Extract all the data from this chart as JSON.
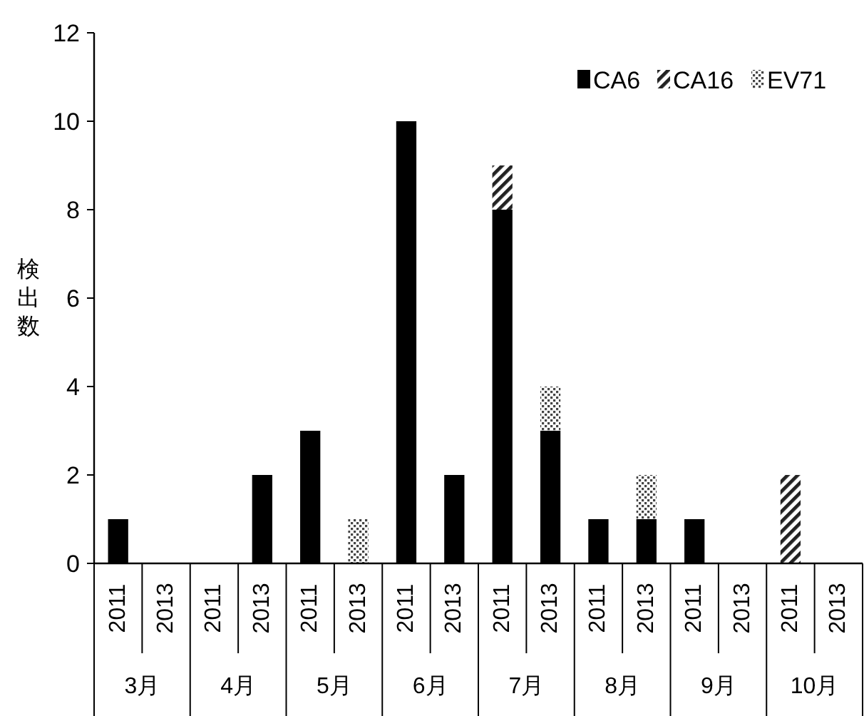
{
  "chart_data": {
    "type": "bar",
    "stacked": true,
    "ylabel": "検出数",
    "categories": [
      "2011",
      "2013",
      "2011",
      "2013",
      "2011",
      "2013",
      "2011",
      "2013",
      "2011",
      "2013",
      "2011",
      "2013",
      "2011",
      "2013",
      "2011",
      "2013"
    ],
    "annotations": [
      "3月",
      "4月",
      "5月",
      "6月",
      "7月",
      "8月",
      "9月",
      "10月"
    ],
    "series": [
      {
        "name": "CA6",
        "color": "#000000",
        "values": [
          1,
          0,
          0,
          2,
          3,
          0,
          10,
          2,
          8,
          3,
          1,
          1,
          1,
          0,
          0,
          0
        ]
      },
      {
        "name": "CA16",
        "color": "#222222",
        "values": [
          0,
          0,
          0,
          0,
          0,
          0,
          0,
          0,
          1,
          0,
          0,
          0,
          0,
          0,
          2,
          0
        ]
      },
      {
        "name": "EV71",
        "color": "#444444",
        "values": [
          0,
          0,
          0,
          0,
          0,
          1,
          0,
          0,
          0,
          1,
          0,
          1,
          0,
          0,
          0,
          0
        ]
      }
    ],
    "ylim": [
      0,
      12
    ],
    "yticks": [
      0,
      2,
      4,
      6,
      8,
      10,
      12
    ],
    "grid": false,
    "legend": "top right"
  }
}
